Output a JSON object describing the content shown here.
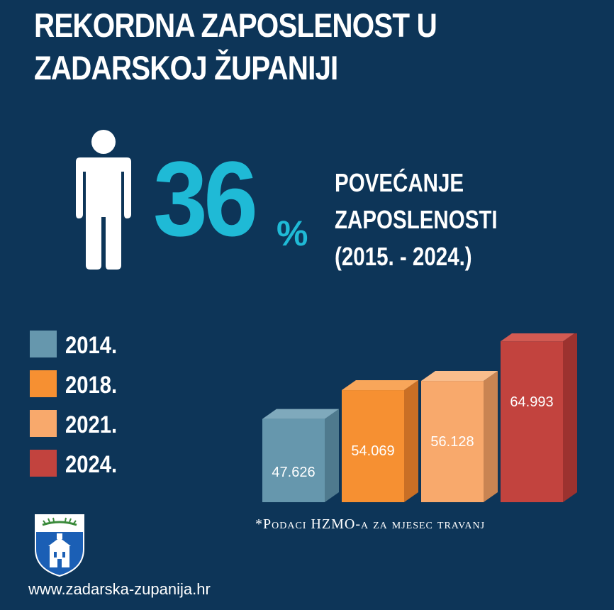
{
  "header": {
    "title_line1": "REKORDNA ZAPOSLENOST U",
    "title_line2": "ZADARSKOJ ŽUPANIJI"
  },
  "highlight": {
    "percent_value": "36",
    "percent_sign": "%",
    "description_line1": "POVEĆANJE",
    "description_line2": "ZAPOSLENOSTI",
    "description_line3": "(2015. - 2024.)",
    "icon": "person-icon"
  },
  "chart_data": {
    "type": "bar",
    "categories": [
      "2014.",
      "2018.",
      "2021.",
      "2024."
    ],
    "values": [
      47626,
      54069,
      56128,
      64993
    ],
    "data_labels": [
      "47.626",
      "54.069",
      "56.128",
      "64.993"
    ],
    "colors": [
      "#6697ad",
      "#f69032",
      "#f8a96c",
      "#c2433e"
    ],
    "side_colors": [
      "#4f7a8e",
      "#c96f25",
      "#c98452",
      "#9c322f"
    ],
    "top_colors": [
      "#7fa9bc",
      "#f8a65a",
      "#f9bd8c",
      "#d25a52"
    ],
    "legend": [
      {
        "label": "2014.",
        "color": "#6697ad"
      },
      {
        "label": "2018.",
        "color": "#f69032"
      },
      {
        "label": "2021.",
        "color": "#f8a96c"
      },
      {
        "label": "2024.",
        "color": "#c2433e"
      }
    ],
    "legend_placement": "left",
    "grid": false,
    "ylim": [
      0,
      70000
    ]
  },
  "footnote": "*Podaci HZMO-a za mjesec travanj",
  "footer": {
    "website": "www.zadarska-zupanija.hr",
    "logo_icon": "county-crest-icon"
  },
  "colors": {
    "background": "#0d3558",
    "accent": "#1fbad6",
    "text": "#ffffff"
  }
}
